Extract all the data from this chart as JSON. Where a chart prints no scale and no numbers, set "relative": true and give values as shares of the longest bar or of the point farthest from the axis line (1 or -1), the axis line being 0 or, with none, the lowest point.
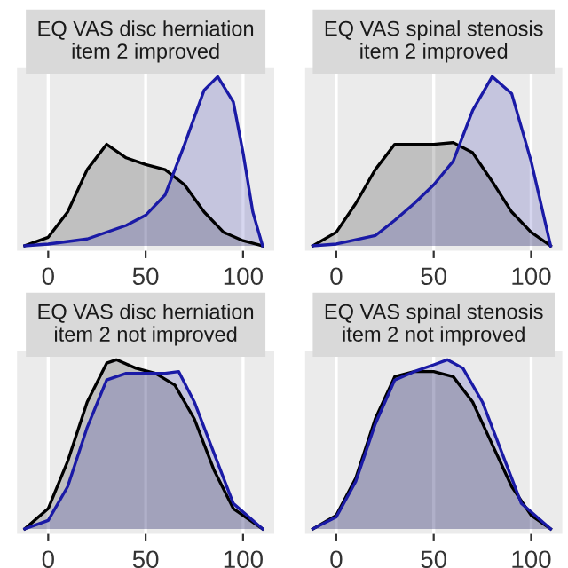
{
  "chart_data": [
    {
      "type": "area",
      "title": "EQ VAS disc herniation\nitem 2 improved",
      "relative": true,
      "xlim": [
        -16,
        116
      ],
      "xticks": [
        0,
        50,
        100
      ],
      "grid": "x",
      "tick_labels": "x",
      "series": [
        {
          "color": "#000000",
          "x": [
            -12,
            0,
            10,
            20,
            30,
            40,
            50,
            60,
            70,
            80,
            90,
            100,
            110
          ],
          "values": [
            0,
            0.05,
            0.2,
            0.45,
            0.6,
            0.52,
            0.48,
            0.45,
            0.36,
            0.2,
            0.08,
            0.03,
            0
          ]
        },
        {
          "color": "#1a1aa6",
          "x": [
            -12,
            0,
            20,
            40,
            50,
            60,
            70,
            80,
            87,
            95,
            100,
            105,
            110
          ],
          "values": [
            0,
            0.01,
            0.04,
            0.12,
            0.18,
            0.3,
            0.6,
            0.92,
            1.0,
            0.85,
            0.55,
            0.2,
            0
          ]
        }
      ]
    },
    {
      "type": "area",
      "title": "EQ VAS spinal stenosis\nitem 2 improved",
      "relative": true,
      "xlim": [
        -16,
        116
      ],
      "xticks": [
        0,
        50,
        100
      ],
      "grid": "x",
      "tick_labels": "x",
      "series": [
        {
          "color": "#000000",
          "x": [
            -12,
            0,
            10,
            20,
            30,
            40,
            50,
            60,
            70,
            80,
            90,
            100,
            110
          ],
          "values": [
            0,
            0.08,
            0.25,
            0.45,
            0.6,
            0.6,
            0.6,
            0.61,
            0.55,
            0.38,
            0.2,
            0.08,
            0
          ]
        },
        {
          "color": "#1a1aa6",
          "x": [
            -12,
            0,
            20,
            30,
            40,
            50,
            60,
            70,
            80,
            90,
            100,
            110
          ],
          "values": [
            0,
            0.01,
            0.06,
            0.15,
            0.25,
            0.36,
            0.5,
            0.8,
            1.0,
            0.9,
            0.5,
            0
          ]
        }
      ]
    },
    {
      "type": "area",
      "title": "EQ VAS disc herniation\nitem 2 not improved",
      "relative": true,
      "xlim": [
        -16,
        116
      ],
      "xticks": [
        0,
        50,
        100
      ],
      "grid": "x",
      "tick_labels": "x",
      "series": [
        {
          "color": "#000000",
          "x": [
            -12,
            0,
            10,
            20,
            30,
            35,
            45,
            55,
            65,
            75,
            85,
            95,
            110
          ],
          "values": [
            0,
            0.12,
            0.4,
            0.75,
            0.98,
            1.0,
            0.95,
            0.92,
            0.85,
            0.65,
            0.35,
            0.12,
            0
          ]
        },
        {
          "color": "#1a1aa6",
          "x": [
            -12,
            0,
            10,
            20,
            30,
            40,
            50,
            60,
            67,
            75,
            85,
            95,
            110
          ],
          "values": [
            0,
            0.05,
            0.25,
            0.6,
            0.88,
            0.92,
            0.92,
            0.92,
            0.93,
            0.75,
            0.45,
            0.15,
            0
          ]
        }
      ]
    },
    {
      "type": "area",
      "title": "EQ VAS spinal stenosis\nitem 2 not improved",
      "relative": true,
      "xlim": [
        -16,
        116
      ],
      "xticks": [
        0,
        50,
        100
      ],
      "grid": "x",
      "tick_labels": "x",
      "series": [
        {
          "color": "#000000",
          "x": [
            -12,
            0,
            10,
            20,
            30,
            40,
            50,
            60,
            70,
            80,
            90,
            100,
            110
          ],
          "values": [
            0,
            0.08,
            0.3,
            0.65,
            0.9,
            0.93,
            0.93,
            0.9,
            0.75,
            0.5,
            0.25,
            0.08,
            0
          ]
        },
        {
          "color": "#1a1aa6",
          "x": [
            -12,
            0,
            10,
            20,
            30,
            40,
            50,
            57,
            65,
            75,
            85,
            95,
            110
          ],
          "values": [
            0,
            0.07,
            0.28,
            0.62,
            0.88,
            0.93,
            0.97,
            1.0,
            0.95,
            0.75,
            0.45,
            0.15,
            0
          ]
        }
      ]
    }
  ]
}
